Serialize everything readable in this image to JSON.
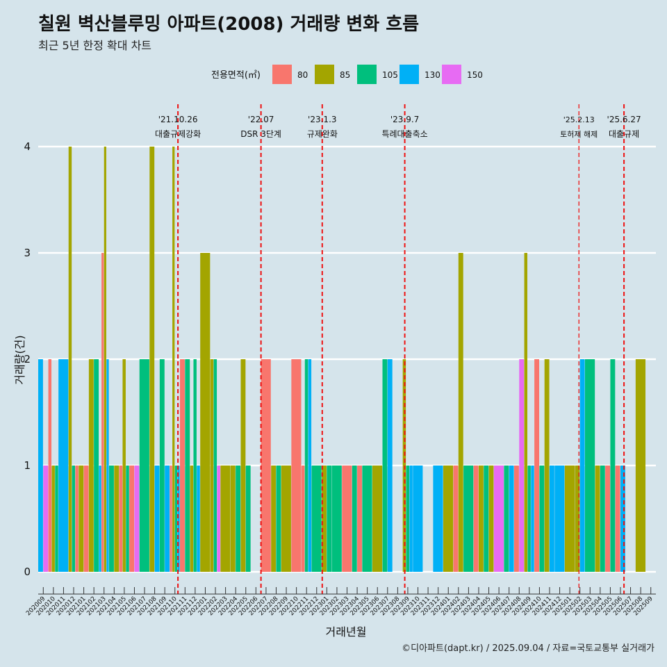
{
  "header": {
    "title": "칠원 벽산블루밍 아파트(2008) 거래량 변화 흐름",
    "subtitle": "최근 5년 한정 확대 차트"
  },
  "caption": "©디아파트(dapt.kr) / 2025.09.04 / 자료=국토교통부 실거래가",
  "chart_data": {
    "type": "bar",
    "xlabel": "거래년월",
    "ylabel": "거래량(건)",
    "ylim": [
      0,
      4
    ],
    "yticks": [
      0,
      1,
      2,
      3,
      4
    ],
    "legend": {
      "title": "전용면적(㎡)",
      "position": "top",
      "entries": [
        {
          "label": "80",
          "color": "#F8766D"
        },
        {
          "label": "85",
          "color": "#A3A500"
        },
        {
          "label": "105",
          "color": "#00BF7D"
        },
        {
          "label": "130",
          "color": "#00B0F6"
        },
        {
          "label": "150",
          "color": "#E76BF3"
        }
      ]
    },
    "categories": [
      "202009",
      "202010",
      "202011",
      "202012",
      "202101",
      "202102",
      "202103",
      "202104",
      "202105",
      "202106",
      "202107",
      "202108",
      "202109",
      "202110",
      "202111",
      "202112",
      "202201",
      "202202",
      "202203",
      "202204",
      "202205",
      "202206",
      "202207",
      "202208",
      "202209",
      "202210",
      "202211",
      "202212",
      "202301",
      "202302",
      "202303",
      "202304",
      "202305",
      "202306",
      "202307",
      "202308",
      "202309",
      "202310",
      "202311",
      "202312",
      "202401",
      "202402",
      "202403",
      "202404",
      "202405",
      "202406",
      "202407",
      "202408",
      "202409",
      "202410",
      "202411",
      "202412",
      "202501",
      "202502",
      "202503",
      "202504",
      "202505",
      "202506",
      "202507",
      "202508",
      "202509"
    ],
    "tick_labels": [
      "202009",
      "202010",
      "202011",
      "202012",
      "202101",
      "202102",
      "202103",
      "202104",
      "202105",
      "202106",
      "202107",
      "202108",
      "202109",
      "202110",
      "202111",
      "202112",
      "202201",
      "202202",
      "202203",
      "202204",
      "202205",
      "202206",
      "202207",
      "202208",
      "202209",
      "202210",
      "202211",
      "202212",
      "202301",
      "202302",
      "202303",
      "202304",
      "202305",
      "202306",
      "202307",
      "202308",
      "202309",
      "202310",
      "202311",
      "202312",
      "202401",
      "202402",
      "202403",
      "202404",
      "202405",
      "202406",
      "202407",
      "202408",
      "202409",
      "202410",
      "202411",
      "202412",
      "202501",
      "202502",
      "202503",
      "202504",
      "202505",
      "202506",
      "202507",
      "202508",
      "202509"
    ],
    "bars": [
      {
        "m": "202009",
        "s": [
          {
            "a": "130",
            "v": 2
          },
          {
            "a": "150",
            "v": 1
          }
        ]
      },
      {
        "m": "202010",
        "s": [
          {
            "a": "80",
            "v": 2
          },
          {
            "a": "85",
            "v": 1
          },
          {
            "a": "105",
            "v": 1
          }
        ]
      },
      {
        "m": "202011",
        "s": [
          {
            "a": "130",
            "v": 2
          }
        ]
      },
      {
        "m": "202012",
        "s": [
          {
            "a": "85",
            "v": 4
          },
          {
            "a": "105",
            "v": 1
          },
          {
            "a": "80",
            "v": 1
          }
        ]
      },
      {
        "m": "202101",
        "s": [
          {
            "a": "85",
            "v": 1
          },
          {
            "a": "80",
            "v": 1
          }
        ]
      },
      {
        "m": "202102",
        "s": [
          {
            "a": "85",
            "v": 2
          },
          {
            "a": "105",
            "v": 2
          }
        ]
      },
      {
        "m": "202103",
        "s": [
          {
            "a": "130",
            "v": 1
          },
          {
            "a": "80",
            "v": 3
          },
          {
            "a": "85",
            "v": 4
          },
          {
            "a": "130",
            "v": 2
          }
        ]
      },
      {
        "m": "202104",
        "s": [
          {
            "a": "105",
            "v": 1
          },
          {
            "a": "85",
            "v": 1
          }
        ]
      },
      {
        "m": "202105",
        "s": [
          {
            "a": "80",
            "v": 1
          },
          {
            "a": "85",
            "v": 2
          },
          {
            "a": "105",
            "v": 1
          }
        ]
      },
      {
        "m": "202106",
        "s": [
          {
            "a": "80",
            "v": 1
          },
          {
            "a": "150",
            "v": 1
          }
        ]
      },
      {
        "m": "202107",
        "s": [
          {
            "a": "105",
            "v": 2
          }
        ]
      },
      {
        "m": "202108",
        "s": [
          {
            "a": "85",
            "v": 4
          },
          {
            "a": "130",
            "v": 1
          }
        ]
      },
      {
        "m": "202109",
        "s": [
          {
            "a": "105",
            "v": 2
          },
          {
            "a": "130",
            "v": 1
          }
        ]
      },
      {
        "m": "202110",
        "s": [
          {
            "a": "80",
            "v": 1
          },
          {
            "a": "85",
            "v": 4
          },
          {
            "a": "105",
            "v": 1
          },
          {
            "a": "130",
            "v": 1
          }
        ]
      },
      {
        "m": "202111",
        "s": [
          {
            "a": "80",
            "v": 2
          },
          {
            "a": "105",
            "v": 2
          }
        ]
      },
      {
        "m": "202112",
        "s": [
          {
            "a": "85",
            "v": 1
          },
          {
            "a": "105",
            "v": 2
          },
          {
            "a": "130",
            "v": 1
          }
        ]
      },
      {
        "m": "202201",
        "s": [
          {
            "a": "85",
            "v": 3
          }
        ]
      },
      {
        "m": "202202",
        "s": [
          {
            "a": "85",
            "v": 2
          },
          {
            "a": "105",
            "v": 2
          },
          {
            "a": "150",
            "v": 1
          }
        ]
      },
      {
        "m": "202203",
        "s": [
          {
            "a": "85",
            "v": 1
          }
        ]
      },
      {
        "m": "202204",
        "s": [
          {
            "a": "85",
            "v": 1
          },
          {
            "a": "105",
            "v": 1
          }
        ]
      },
      {
        "m": "202205",
        "s": [
          {
            "a": "85",
            "v": 2
          },
          {
            "a": "105",
            "v": 1
          }
        ]
      },
      {
        "m": "202206",
        "s": []
      },
      {
        "m": "202207",
        "s": [
          {
            "a": "80",
            "v": 2
          }
        ]
      },
      {
        "m": "202208",
        "s": [
          {
            "a": "85",
            "v": 1
          },
          {
            "a": "105",
            "v": 1
          }
        ]
      },
      {
        "m": "202209",
        "s": [
          {
            "a": "85",
            "v": 1
          }
        ]
      },
      {
        "m": "202210",
        "s": [
          {
            "a": "80",
            "v": 2
          }
        ]
      },
      {
        "m": "202211",
        "s": [
          {
            "a": "80",
            "v": 1
          },
          {
            "a": "105",
            "v": 2
          },
          {
            "a": "130",
            "v": 2
          }
        ]
      },
      {
        "m": "202212",
        "s": [
          {
            "a": "105",
            "v": 1
          }
        ]
      },
      {
        "m": "202301",
        "s": [
          {
            "a": "85",
            "v": 1
          },
          {
            "a": "105",
            "v": 1
          }
        ]
      },
      {
        "m": "202302",
        "s": [
          {
            "a": "105",
            "v": 1
          }
        ]
      },
      {
        "m": "202303",
        "s": [
          {
            "a": "80",
            "v": 1
          }
        ]
      },
      {
        "m": "202304",
        "s": [
          {
            "a": "105",
            "v": 1
          },
          {
            "a": "80",
            "v": 1
          }
        ]
      },
      {
        "m": "202305",
        "s": [
          {
            "a": "105",
            "v": 1
          }
        ]
      },
      {
        "m": "202306",
        "s": [
          {
            "a": "85",
            "v": 1
          }
        ]
      },
      {
        "m": "202307",
        "s": [
          {
            "a": "105",
            "v": 2
          },
          {
            "a": "130",
            "v": 2
          }
        ]
      },
      {
        "m": "202308",
        "s": []
      },
      {
        "m": "202309",
        "s": [
          {
            "a": "85",
            "v": 2
          },
          {
            "a": "105",
            "v": 1
          },
          {
            "a": "130",
            "v": 1
          }
        ]
      },
      {
        "m": "202310",
        "s": [
          {
            "a": "130",
            "v": 1
          }
        ]
      },
      {
        "m": "202311",
        "s": []
      },
      {
        "m": "202312",
        "s": [
          {
            "a": "130",
            "v": 1
          }
        ]
      },
      {
        "m": "202401",
        "s": [
          {
            "a": "85",
            "v": 1
          }
        ]
      },
      {
        "m": "202402",
        "s": [
          {
            "a": "80",
            "v": 1
          },
          {
            "a": "85",
            "v": 3
          }
        ]
      },
      {
        "m": "202403",
        "s": [
          {
            "a": "105",
            "v": 1
          }
        ]
      },
      {
        "m": "202404",
        "s": [
          {
            "a": "80",
            "v": 1
          },
          {
            "a": "85",
            "v": 1
          }
        ]
      },
      {
        "m": "202405",
        "s": [
          {
            "a": "105",
            "v": 1
          },
          {
            "a": "85",
            "v": 1
          }
        ]
      },
      {
        "m": "202406",
        "s": [
          {
            "a": "150",
            "v": 1
          }
        ]
      },
      {
        "m": "202407",
        "s": [
          {
            "a": "105",
            "v": 1
          },
          {
            "a": "130",
            "v": 1
          }
        ]
      },
      {
        "m": "202408",
        "s": [
          {
            "a": "80",
            "v": 1
          },
          {
            "a": "150",
            "v": 2
          }
        ]
      },
      {
        "m": "202409",
        "s": [
          {
            "a": "85",
            "v": 3
          },
          {
            "a": "105",
            "v": 1
          },
          {
            "a": "130",
            "v": 1
          }
        ]
      },
      {
        "m": "202410",
        "s": [
          {
            "a": "80",
            "v": 2
          },
          {
            "a": "105",
            "v": 1
          }
        ]
      },
      {
        "m": "202411",
        "s": [
          {
            "a": "85",
            "v": 2
          },
          {
            "a": "130",
            "v": 1
          }
        ]
      },
      {
        "m": "202412",
        "s": [
          {
            "a": "130",
            "v": 1
          }
        ]
      },
      {
        "m": "202501",
        "s": [
          {
            "a": "85",
            "v": 1
          }
        ]
      },
      {
        "m": "202502",
        "s": [
          {
            "a": "85",
            "v": 1
          },
          {
            "a": "130",
            "v": 2
          }
        ]
      },
      {
        "m": "202503",
        "s": [
          {
            "a": "105",
            "v": 2
          }
        ]
      },
      {
        "m": "202504",
        "s": [
          {
            "a": "85",
            "v": 1
          },
          {
            "a": "105",
            "v": 1
          }
        ]
      },
      {
        "m": "202505",
        "s": [
          {
            "a": "80",
            "v": 1
          },
          {
            "a": "105",
            "v": 2
          }
        ]
      },
      {
        "m": "202506",
        "s": [
          {
            "a": "80",
            "v": 1
          },
          {
            "a": "130",
            "v": 1
          }
        ]
      },
      {
        "m": "202507",
        "s": []
      },
      {
        "m": "202508",
        "s": [
          {
            "a": "85",
            "v": 2
          }
        ]
      },
      {
        "m": "202509",
        "s": []
      }
    ],
    "annotations": [
      {
        "date_label": "'21.10.26",
        "text": "대출규제강화",
        "after": "202110",
        "frac": 0.8,
        "small": false
      },
      {
        "date_label": "'22.07",
        "text": "DSR 3단계",
        "after": "202207",
        "frac": 0.0,
        "small": false
      },
      {
        "date_label": "'23.1.3",
        "text": "규제완화",
        "after": "202301",
        "frac": 0.05,
        "small": false
      },
      {
        "date_label": "'23.9.7",
        "text": "특례대출축소",
        "after": "202309",
        "frac": 0.2,
        "small": false
      },
      {
        "date_label": "'25.2.13",
        "text": "토허제 해제",
        "after": "202502",
        "frac": 0.4,
        "small": true
      },
      {
        "date_label": "'25.6.27",
        "text": "대출규제",
        "after": "202506",
        "frac": 0.85,
        "small": false
      }
    ]
  }
}
